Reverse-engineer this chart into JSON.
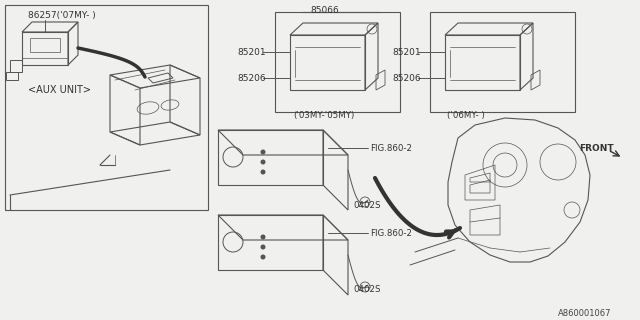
{
  "bg_color": "#f0f0ee",
  "line_color": "#555555",
  "dark_color": "#333333",
  "text_color": "#333333",
  "diagram_id": "A860001067",
  "labels": {
    "part1": "86257('07MY- )",
    "aux_unit": "<AUX UNIT>",
    "part2_top": "85066",
    "part2_left_top": "85201",
    "part2_left_bot": "85206",
    "part2_year": "('03MY-'05MY)",
    "part3_left_top": "85201",
    "part3_left_bot": "85206",
    "part3_year": "('06MY- )",
    "fig1": "FIG.860-2",
    "fig2": "FIG.860-2",
    "bolt1": "0402S",
    "bolt2": "0402S",
    "front": "FRONT"
  }
}
